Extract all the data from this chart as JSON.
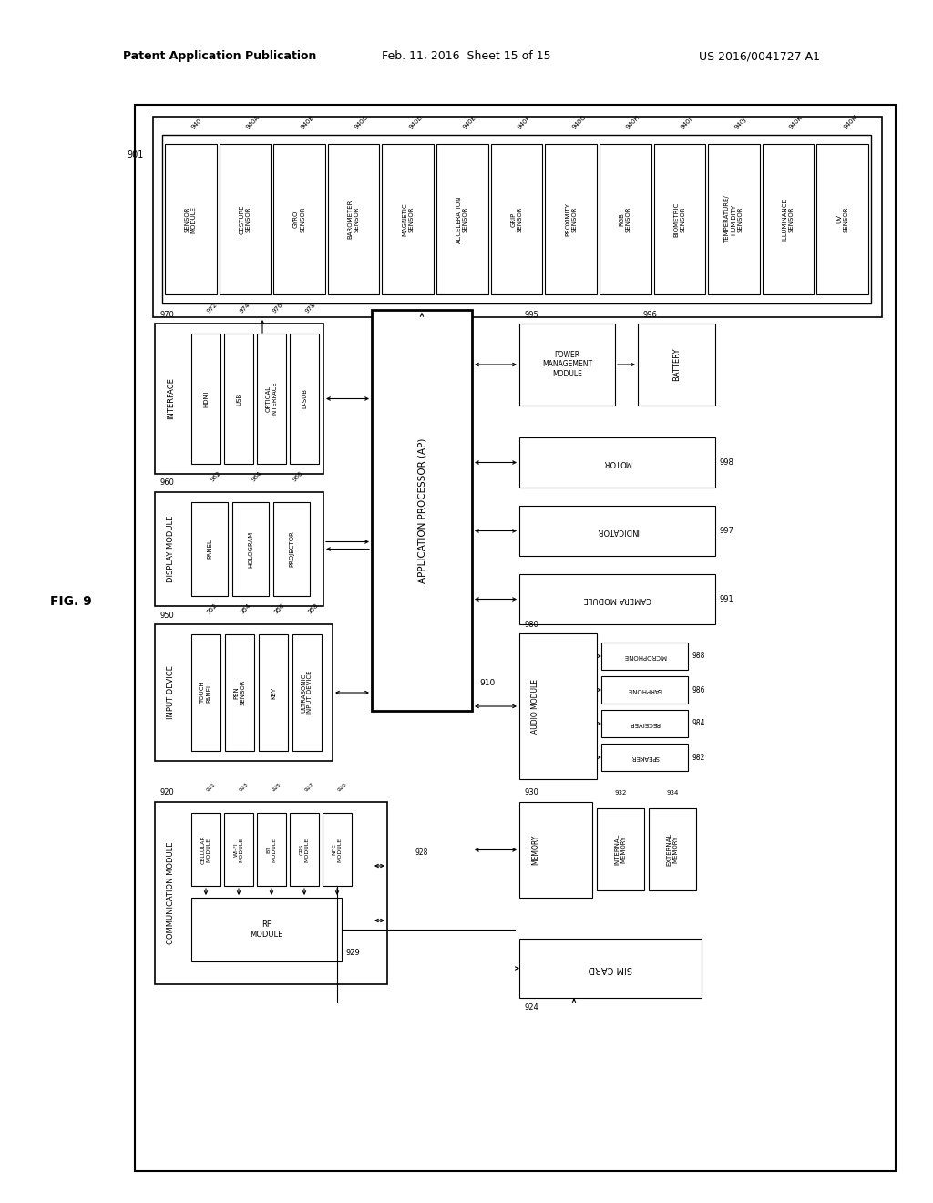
{
  "header": {
    "left": "Patent Application Publication",
    "mid": "Feb. 11, 2016  Sheet 15 of 15",
    "right": "US 2016/0041727 A1"
  },
  "fig_label": "FIG. 9",
  "bg": "#ffffff"
}
